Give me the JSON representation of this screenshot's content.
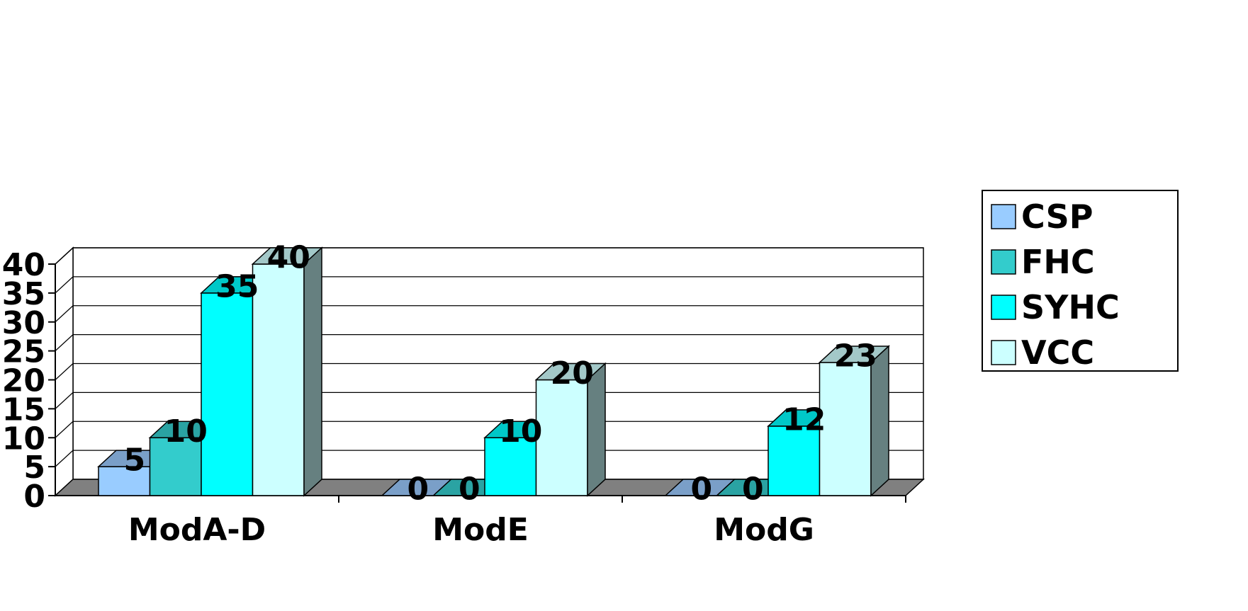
{
  "chart_data": {
    "type": "bar",
    "style": "3d-clustered-column",
    "categories": [
      "ModA-D",
      "ModE",
      "ModG"
    ],
    "series": [
      {
        "name": "CSP",
        "values": [
          5,
          0,
          0
        ],
        "color": "#99ccff",
        "top_color": "#7a9fc8",
        "side_color": "#5f7f9f"
      },
      {
        "name": "FHC",
        "values": [
          10,
          0,
          0
        ],
        "color": "#33cccc",
        "top_color": "#2aa3a3",
        "side_color": "#1f7f7f"
      },
      {
        "name": "SYHC",
        "values": [
          35,
          10,
          12
        ],
        "color": "#00ffff",
        "top_color": "#00c8c8",
        "side_color": "#009999"
      },
      {
        "name": "VCC",
        "values": [
          40,
          20,
          23
        ],
        "color": "#ccffff",
        "top_color": "#a3c8c8",
        "side_color": "#668080"
      }
    ],
    "data_labels": [
      [
        "5",
        "0",
        "0"
      ],
      [
        "10",
        "0",
        "0"
      ],
      [
        "35",
        "10",
        "12"
      ],
      [
        "40",
        "20",
        "23"
      ]
    ],
    "yticks": [
      "0",
      "5",
      "10",
      "15",
      "20",
      "25",
      "30",
      "35",
      "40"
    ],
    "ylim": [
      0,
      40
    ],
    "title": "",
    "xlabel": "",
    "ylabel": "",
    "grid": true,
    "floor_color": "#808080",
    "legend_position": "right"
  }
}
